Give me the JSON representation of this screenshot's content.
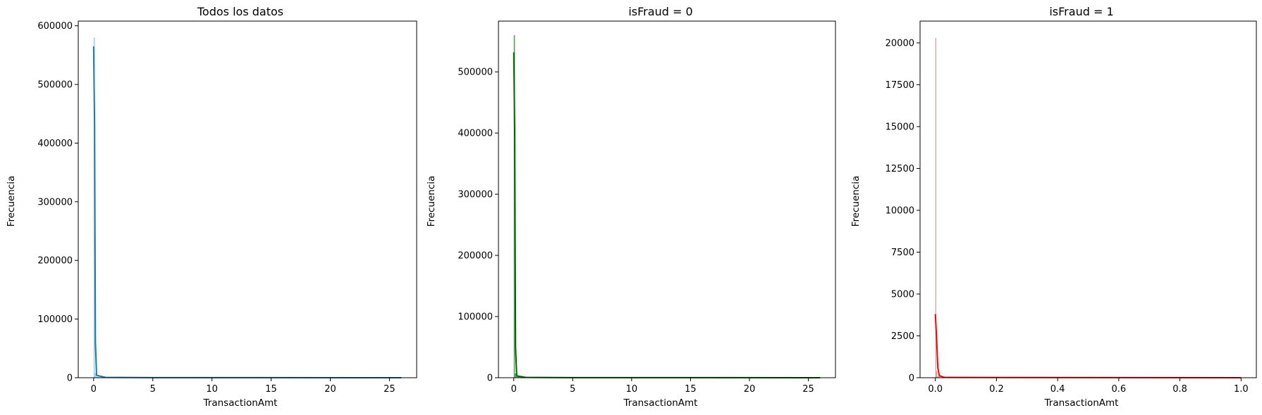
{
  "chart_data": [
    {
      "type": "bar",
      "title": "Todos los datos",
      "xlabel": "TransactionAmt",
      "ylabel": "Frecuencia",
      "xlim": [
        -1.3,
        27.3
      ],
      "ylim": [
        0,
        608000
      ],
      "xticks": [
        0,
        5,
        10,
        15,
        20,
        25
      ],
      "yticks": [
        0,
        100000,
        200000,
        300000,
        400000,
        500000,
        600000
      ],
      "colors": {
        "bar": "#87ceeb",
        "line": "#1f77b4"
      },
      "bins": [
        {
          "x0": 0.0,
          "x1": 0.1,
          "value": 580000
        },
        {
          "x0": 0.1,
          "x1": 0.2,
          "value": 8000
        },
        {
          "x0": 0.2,
          "x1": 0.5,
          "value": 1500
        },
        {
          "x0": 0.5,
          "x1": 26.0,
          "value": 300
        }
      ],
      "kde": [
        {
          "x": 0.0,
          "y": 565000
        },
        {
          "x": 0.08,
          "y": 430000
        },
        {
          "x": 0.15,
          "y": 60000
        },
        {
          "x": 0.25,
          "y": 4000
        },
        {
          "x": 1.0,
          "y": 600
        },
        {
          "x": 5.0,
          "y": 200
        },
        {
          "x": 26.0,
          "y": 0
        }
      ]
    },
    {
      "type": "bar",
      "title": "isFraud = 0",
      "xlabel": "TransactionAmt",
      "ylabel": "Frecuencia",
      "xlim": [
        -1.3,
        27.3
      ],
      "ylim": [
        0,
        583000
      ],
      "xticks": [
        0,
        5,
        10,
        15,
        20,
        25
      ],
      "yticks": [
        0,
        100000,
        200000,
        300000,
        400000,
        500000
      ],
      "colors": {
        "bar": "#2ca02c",
        "line": "#006400"
      },
      "bins": [
        {
          "x0": 0.0,
          "x1": 0.1,
          "value": 560000
        },
        {
          "x0": 0.1,
          "x1": 0.2,
          "value": 7000
        },
        {
          "x0": 0.2,
          "x1": 0.5,
          "value": 1500
        },
        {
          "x0": 0.5,
          "x1": 26.0,
          "value": 300
        }
      ],
      "kde": [
        {
          "x": 0.0,
          "y": 532000
        },
        {
          "x": 0.08,
          "y": 400000
        },
        {
          "x": 0.15,
          "y": 50000
        },
        {
          "x": 0.25,
          "y": 3000
        },
        {
          "x": 1.0,
          "y": 600
        },
        {
          "x": 5.0,
          "y": 200
        },
        {
          "x": 26.0,
          "y": 0
        }
      ]
    },
    {
      "type": "bar",
      "title": "isFraud = 1",
      "xlabel": "TransactionAmt",
      "ylabel": "Frecuencia",
      "xlim": [
        -0.05,
        1.05
      ],
      "ylim": [
        0,
        21300
      ],
      "xticks": [
        "0.0",
        "0.2",
        "0.4",
        "0.6",
        "0.8",
        "1.0"
      ],
      "yticks": [
        0,
        2500,
        5000,
        7500,
        10000,
        12500,
        15000,
        17500,
        20000
      ],
      "colors": {
        "bar": "#f08080",
        "line": "#ff0000"
      },
      "bins": [
        {
          "x0": 0.0,
          "x1": 0.003,
          "value": 20300
        },
        {
          "x0": 0.003,
          "x1": 0.006,
          "value": 400
        },
        {
          "x0": 0.006,
          "x1": 0.015,
          "value": 80
        },
        {
          "x0": 0.015,
          "x1": 1.0,
          "value": 10
        }
      ],
      "kde": [
        {
          "x": 0.0,
          "y": 3800
        },
        {
          "x": 0.004,
          "y": 2400
        },
        {
          "x": 0.008,
          "y": 600
        },
        {
          "x": 0.013,
          "y": 120
        },
        {
          "x": 0.03,
          "y": 20
        },
        {
          "x": 1.0,
          "y": 0
        }
      ]
    }
  ]
}
